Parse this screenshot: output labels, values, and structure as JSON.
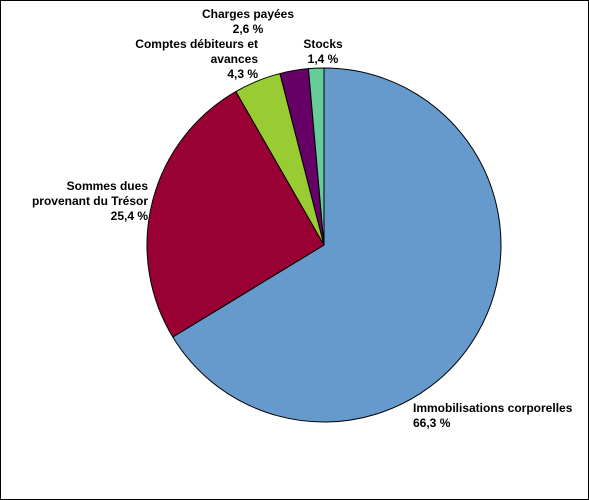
{
  "chart_data": {
    "type": "pie",
    "categories": [
      "Immobilisations corporelles",
      "Sommes dues provenant du Trésor",
      "Comptes débiteurs et avances",
      "Charges payées",
      "Stocks"
    ],
    "values": [
      66.3,
      25.4,
      4.3,
      2.6,
      1.4
    ],
    "value_labels": [
      "66,3 %",
      "25,4 %",
      "4,3 %",
      "2,6 %",
      "1,4 %"
    ],
    "colors": [
      "#6699cc",
      "#990033",
      "#99cc33",
      "#660066",
      "#66cc99"
    ]
  }
}
